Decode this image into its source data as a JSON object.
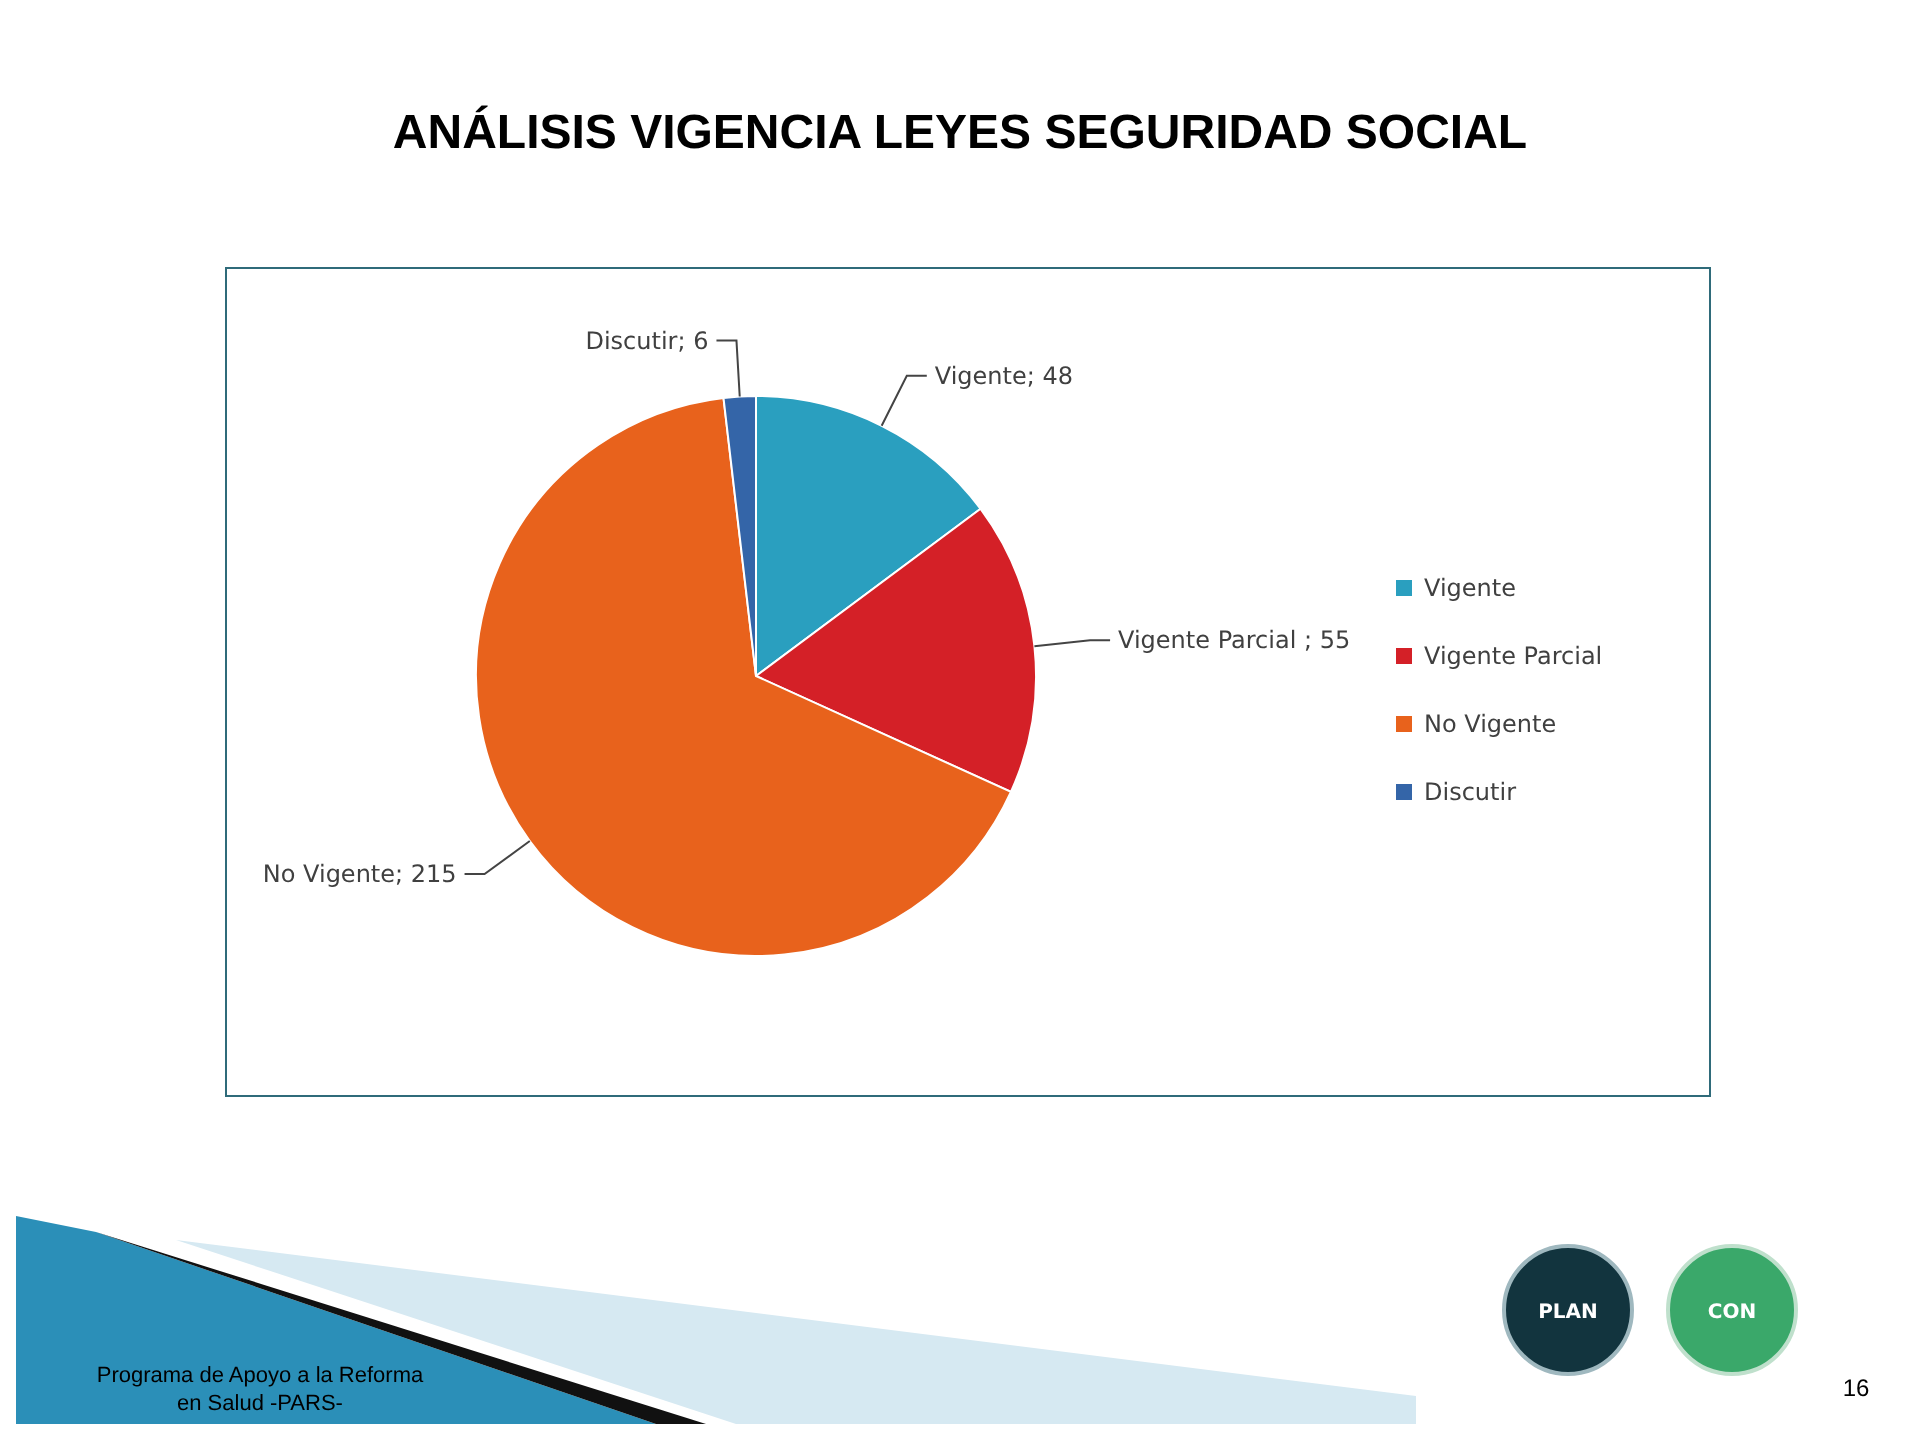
{
  "chart_data": {
    "type": "pie",
    "title": "ANÁLISIS VIGENCIA LEYES SEGURIDAD SOCIAL",
    "categories": [
      "Vigente",
      "Vigente Parcial",
      "No Vigente",
      "Discutir"
    ],
    "values": [
      48,
      55,
      215,
      6
    ],
    "colors": [
      "#2a9fbf",
      "#d42027",
      "#e8621c",
      "#3465a8"
    ],
    "value_labels": [
      "Vigente; 48",
      "Vigente Parcial ; 55",
      "No Vigente; 215",
      "Discutir; 6"
    ],
    "legend": "right",
    "annotations": [
      "Programa de Apoyo a la Reforma en Salud -PARS-",
      "16",
      "PLAN",
      "CON"
    ]
  }
}
